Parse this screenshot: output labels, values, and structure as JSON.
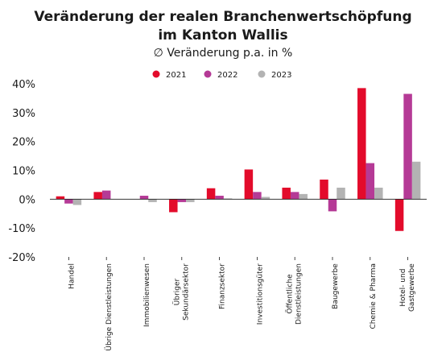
{
  "chart_data": {
    "type": "bar",
    "title_line1": "Veränderung der realen Branchenwertschöpfung",
    "title_line2": "im Kanton Wallis",
    "subtitle": "∅ Veränderung p.a. in %",
    "categories": [
      [
        "Handel"
      ],
      [
        "Übrige Dienstleistungen"
      ],
      [
        "Immobilienwesen"
      ],
      [
        "Übriger",
        "Sekundärsektor"
      ],
      [
        "Finanzsektor"
      ],
      [
        "Investitionsgüter"
      ],
      [
        "Öffentliche",
        "Dienstleistungen"
      ],
      [
        "Baugewerbe"
      ],
      [
        "Chemie & Pharma"
      ],
      [
        "Hotel- und",
        "Gastgewerbe"
      ]
    ],
    "series": [
      {
        "name": "2021",
        "color": "#e30b2b",
        "values": [
          1.0,
          2.5,
          0.0,
          -4.5,
          3.8,
          10.3,
          4.0,
          6.8,
          38.5,
          -11.0
        ]
      },
      {
        "name": "2022",
        "color": "#b53a96",
        "values": [
          -1.5,
          3.0,
          1.2,
          -1.0,
          1.2,
          2.5,
          2.5,
          -4.2,
          12.5,
          36.5
        ]
      },
      {
        "name": "2023",
        "color": "#b3b3b3",
        "values": [
          -2.0,
          0.0,
          -1.0,
          -1.0,
          0.3,
          0.8,
          1.8,
          4.0,
          4.0,
          13.0
        ]
      }
    ],
    "yticks": [
      "40%",
      "30%",
      "20%",
      "10%",
      "0%",
      "-10%",
      "-20%"
    ],
    "ylim": [
      -20,
      40
    ],
    "grid": false,
    "legend_position": "top-center"
  }
}
